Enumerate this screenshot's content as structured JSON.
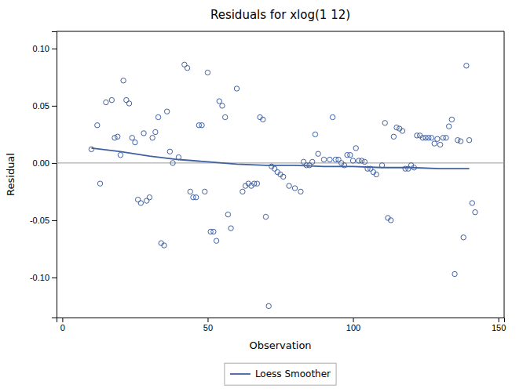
{
  "chart_data": {
    "type": "scatter",
    "title": "Residuals for xlog(1 12)",
    "xlabel": "Observation",
    "ylabel": "Residual",
    "xlim": [
      -2,
      152
    ],
    "ylim": [
      -0.135,
      0.115
    ],
    "xticks": [
      0,
      50,
      100,
      150
    ],
    "yticks": [
      {
        "value": -0.1,
        "label": "-0.10"
      },
      {
        "value": -0.05,
        "label": "-0.05"
      },
      {
        "value": 0.0,
        "label": "0.00"
      },
      {
        "value": 0.05,
        "label": "0.05"
      },
      {
        "value": 0.1,
        "label": "0.10"
      }
    ],
    "grid": false,
    "legend": "bottom",
    "hline": {
      "value": 0,
      "color": "#999999"
    },
    "series": [
      {
        "type": "scatter",
        "marker": "circle",
        "color": "#4060a0",
        "x": [
          10,
          12,
          13,
          15,
          17,
          18,
          19,
          20,
          21,
          22,
          23,
          24,
          25,
          26,
          27,
          28,
          29,
          30,
          31,
          32,
          33,
          34,
          35,
          36,
          37,
          38,
          40,
          42,
          43,
          44,
          45,
          46,
          47,
          48,
          49,
          50,
          51,
          52,
          53,
          54,
          55,
          56,
          57,
          58,
          60,
          62,
          63,
          64,
          65,
          66,
          67,
          68,
          69,
          70,
          71,
          72,
          73,
          74,
          75,
          76,
          78,
          80,
          82,
          83,
          84,
          85,
          86,
          87,
          88,
          90,
          92,
          93,
          94,
          95,
          96,
          97,
          98,
          99,
          100,
          101,
          102,
          103,
          104,
          105,
          106,
          107,
          108,
          110,
          111,
          112,
          113,
          114,
          115,
          116,
          117,
          118,
          119,
          120,
          121,
          122,
          123,
          124,
          125,
          126,
          127,
          128,
          129,
          130,
          131,
          132,
          133,
          134,
          135,
          136,
          137,
          138,
          139,
          140,
          141,
          142
        ],
        "values": [
          0.012,
          0.033,
          -0.018,
          0.053,
          0.055,
          0.022,
          0.023,
          0.007,
          0.072,
          0.055,
          0.052,
          0.022,
          0.018,
          -0.032,
          -0.035,
          0.026,
          -0.033,
          -0.03,
          0.022,
          0.027,
          0.04,
          -0.07,
          -0.072,
          0.045,
          0.01,
          0.0,
          0.005,
          0.086,
          0.083,
          -0.025,
          -0.03,
          -0.03,
          0.033,
          0.033,
          -0.025,
          0.079,
          -0.06,
          -0.06,
          -0.068,
          0.054,
          0.05,
          0.04,
          -0.045,
          -0.057,
          0.065,
          -0.025,
          -0.02,
          -0.018,
          -0.02,
          -0.018,
          -0.018,
          0.04,
          0.038,
          -0.047,
          -0.125,
          -0.003,
          -0.005,
          -0.008,
          -0.01,
          -0.012,
          -0.02,
          -0.022,
          -0.025,
          0.001,
          -0.002,
          -0.002,
          0.001,
          0.025,
          0.008,
          0.003,
          0.003,
          0.04,
          0.003,
          0.003,
          0.0,
          -0.002,
          0.007,
          0.007,
          0.002,
          0.013,
          0.002,
          0.002,
          0.001,
          -0.005,
          -0.005,
          -0.008,
          -0.01,
          -0.002,
          0.035,
          -0.048,
          -0.05,
          0.023,
          0.031,
          0.03,
          0.028,
          -0.005,
          -0.005,
          -0.002,
          -0.004,
          0.024,
          0.024,
          0.022,
          0.022,
          0.022,
          0.022,
          0.017,
          0.021,
          0.016,
          0.022,
          0.022,
          0.032,
          0.038,
          -0.097,
          0.02,
          0.019,
          -0.065,
          0.085,
          0.02,
          -0.035,
          -0.043
        ]
      },
      {
        "type": "line",
        "name": "Loess Smoother",
        "color": "#4060a0",
        "x": [
          10,
          20,
          30,
          40,
          50,
          60,
          70,
          75,
          80,
          90,
          100,
          110,
          120,
          130,
          140
        ],
        "values": [
          0.013,
          0.01,
          0.006,
          0.003,
          0.001,
          -0.001,
          -0.002,
          -0.002,
          -0.002,
          -0.003,
          -0.003,
          -0.004,
          -0.004,
          -0.005,
          -0.005
        ]
      }
    ]
  }
}
